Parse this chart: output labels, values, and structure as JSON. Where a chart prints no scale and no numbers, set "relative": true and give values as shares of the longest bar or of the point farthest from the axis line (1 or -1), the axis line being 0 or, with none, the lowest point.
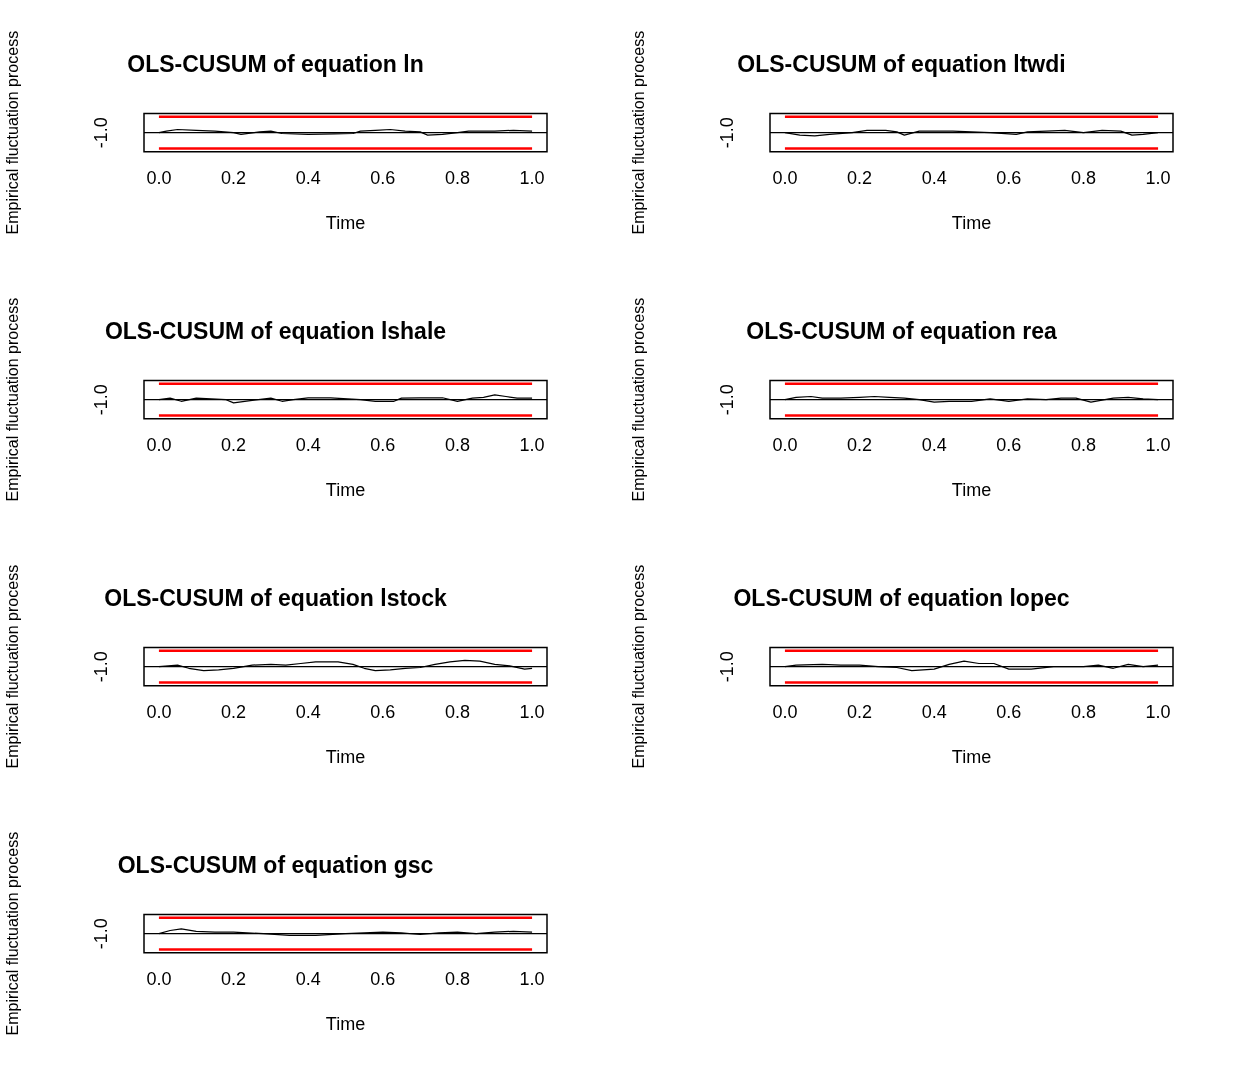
{
  "chart_data": [
    {
      "type": "line",
      "title": "OLS-CUSUM of equation ln",
      "xlabel": "Time",
      "ylabel": "Empirical fluctuation process",
      "relative": true,
      "annotations": [
        "-1.0"
      ],
      "xlim": [
        -0.04,
        1.04
      ],
      "xticks": [
        {
          "value": 0,
          "label": "0.0"
        },
        {
          "value": 0.2,
          "label": "0.2"
        },
        {
          "value": 0.4,
          "label": "0.4"
        },
        {
          "value": 0.6,
          "label": "0.6"
        },
        {
          "value": 0.8,
          "label": "0.8"
        },
        {
          "value": 1,
          "label": "1.0"
        }
      ],
      "ref_lines": [
        {
          "axis": "y",
          "value": 0,
          "color": "#000000"
        }
      ],
      "series": [
        {
          "color": "#ff0000",
          "x": [
            0,
            1
          ],
          "values": [
            1,
            1
          ]
        },
        {
          "color": "#ff0000",
          "x": [
            0,
            1
          ],
          "values": [
            -1,
            -1
          ]
        },
        {
          "color": "#000000",
          "x": [
            0,
            0.02,
            0.05,
            0.1,
            0.15,
            0.2,
            0.22,
            0.27,
            0.3,
            0.33,
            0.4,
            0.47,
            0.52,
            0.54,
            0.58,
            0.62,
            0.66,
            0.7,
            0.72,
            0.76,
            0.8,
            0.83,
            0.9,
            0.95,
            1
          ],
          "values": [
            0,
            0.1,
            0.2,
            0.15,
            0.1,
            0,
            -0.1,
            0.05,
            0.1,
            -0.05,
            -0.1,
            -0.08,
            -0.05,
            0.1,
            0.15,
            0.2,
            0.1,
            0.05,
            -0.15,
            -0.1,
            0,
            0.1,
            0.1,
            0.15,
            0.1
          ]
        }
      ]
    },
    {
      "type": "line",
      "title": "OLS-CUSUM of equation ltwdi",
      "xlabel": "Time",
      "ylabel": "Empirical fluctuation process",
      "relative": true,
      "annotations": [
        "-1.0"
      ],
      "xlim": [
        -0.04,
        1.04
      ],
      "xticks": [
        {
          "value": 0,
          "label": "0.0"
        },
        {
          "value": 0.2,
          "label": "0.2"
        },
        {
          "value": 0.4,
          "label": "0.4"
        },
        {
          "value": 0.6,
          "label": "0.6"
        },
        {
          "value": 0.8,
          "label": "0.8"
        },
        {
          "value": 1,
          "label": "1.0"
        }
      ],
      "ref_lines": [
        {
          "axis": "y",
          "value": 0,
          "color": "#000000"
        }
      ],
      "series": [
        {
          "color": "#ff0000",
          "x": [
            0,
            1
          ],
          "values": [
            1,
            1
          ]
        },
        {
          "color": "#ff0000",
          "x": [
            0,
            1
          ],
          "values": [
            -1,
            -1
          ]
        },
        {
          "color": "#000000",
          "x": [
            0,
            0.04,
            0.08,
            0.12,
            0.18,
            0.22,
            0.27,
            0.3,
            0.32,
            0.36,
            0.4,
            0.45,
            0.5,
            0.55,
            0.62,
            0.65,
            0.7,
            0.75,
            0.8,
            0.85,
            0.9,
            0.93,
            0.96,
            1
          ],
          "values": [
            0,
            -0.15,
            -0.2,
            -0.1,
            0,
            0.15,
            0.15,
            0.05,
            -0.15,
            0.1,
            0.1,
            0.1,
            0.05,
            0,
            -0.1,
            0.05,
            0.1,
            0.15,
            0,
            0.15,
            0.1,
            -0.15,
            -0.1,
            0
          ]
        }
      ]
    },
    {
      "type": "line",
      "title": "OLS-CUSUM of equation lshale",
      "xlabel": "Time",
      "ylabel": "Empirical fluctuation process",
      "relative": true,
      "annotations": [
        "-1.0"
      ],
      "xlim": [
        -0.04,
        1.04
      ],
      "xticks": [
        {
          "value": 0,
          "label": "0.0"
        },
        {
          "value": 0.2,
          "label": "0.2"
        },
        {
          "value": 0.4,
          "label": "0.4"
        },
        {
          "value": 0.6,
          "label": "0.6"
        },
        {
          "value": 0.8,
          "label": "0.8"
        },
        {
          "value": 1,
          "label": "1.0"
        }
      ],
      "ref_lines": [
        {
          "axis": "y",
          "value": 0,
          "color": "#000000"
        }
      ],
      "series": [
        {
          "color": "#ff0000",
          "x": [
            0,
            1
          ],
          "values": [
            1,
            1
          ]
        },
        {
          "color": "#ff0000",
          "x": [
            0,
            1
          ],
          "values": [
            -1,
            -1
          ]
        },
        {
          "color": "#000000",
          "x": [
            0,
            0.03,
            0.06,
            0.1,
            0.18,
            0.2,
            0.23,
            0.3,
            0.33,
            0.36,
            0.4,
            0.46,
            0.54,
            0.58,
            0.63,
            0.65,
            0.7,
            0.76,
            0.8,
            0.84,
            0.87,
            0.9,
            0.93,
            0.96,
            1
          ],
          "values": [
            0,
            0.1,
            -0.1,
            0.1,
            0,
            -0.2,
            -0.1,
            0.1,
            -0.1,
            0,
            0.12,
            0.12,
            0,
            -0.1,
            -0.1,
            0.1,
            0.12,
            0.12,
            -0.1,
            0.1,
            0.15,
            0.3,
            0.2,
            0.1,
            0.1
          ]
        }
      ]
    },
    {
      "type": "line",
      "title": "OLS-CUSUM of equation rea",
      "xlabel": "Time",
      "ylabel": "Empirical fluctuation process",
      "relative": true,
      "annotations": [
        "-1.0"
      ],
      "xlim": [
        -0.04,
        1.04
      ],
      "xticks": [
        {
          "value": 0,
          "label": "0.0"
        },
        {
          "value": 0.2,
          "label": "0.2"
        },
        {
          "value": 0.4,
          "label": "0.4"
        },
        {
          "value": 0.6,
          "label": "0.6"
        },
        {
          "value": 0.8,
          "label": "0.8"
        },
        {
          "value": 1,
          "label": "1.0"
        }
      ],
      "ref_lines": [
        {
          "axis": "y",
          "value": 0,
          "color": "#000000"
        }
      ],
      "series": [
        {
          "color": "#ff0000",
          "x": [
            0,
            1
          ],
          "values": [
            1,
            1
          ]
        },
        {
          "color": "#ff0000",
          "x": [
            0,
            1
          ],
          "values": [
            -1,
            -1
          ]
        },
        {
          "color": "#000000",
          "x": [
            0,
            0.03,
            0.07,
            0.1,
            0.15,
            0.2,
            0.24,
            0.28,
            0.32,
            0.36,
            0.4,
            0.44,
            0.5,
            0.55,
            0.6,
            0.65,
            0.7,
            0.74,
            0.78,
            0.82,
            0.88,
            0.92,
            0.96,
            1
          ],
          "values": [
            0,
            0.15,
            0.2,
            0.1,
            0.1,
            0.15,
            0.2,
            0.15,
            0.1,
            0,
            -0.15,
            -0.1,
            -0.1,
            0.05,
            -0.1,
            0.05,
            0,
            0.1,
            0.1,
            -0.15,
            0.1,
            0.15,
            0.05,
            0
          ]
        }
      ]
    },
    {
      "type": "line",
      "title": "OLS-CUSUM of equation lstock",
      "xlabel": "Time",
      "ylabel": "Empirical fluctuation process",
      "relative": true,
      "annotations": [
        "-1.0"
      ],
      "xlim": [
        -0.04,
        1.04
      ],
      "xticks": [
        {
          "value": 0,
          "label": "0.0"
        },
        {
          "value": 0.2,
          "label": "0.2"
        },
        {
          "value": 0.4,
          "label": "0.4"
        },
        {
          "value": 0.6,
          "label": "0.6"
        },
        {
          "value": 0.8,
          "label": "0.8"
        },
        {
          "value": 1,
          "label": "1.0"
        }
      ],
      "ref_lines": [
        {
          "axis": "y",
          "value": 0,
          "color": "#000000"
        }
      ],
      "series": [
        {
          "color": "#ff0000",
          "x": [
            0,
            1
          ],
          "values": [
            1,
            1
          ]
        },
        {
          "color": "#ff0000",
          "x": [
            0,
            1
          ],
          "values": [
            -1,
            -1
          ]
        },
        {
          "color": "#000000",
          "x": [
            0,
            0.05,
            0.08,
            0.12,
            0.16,
            0.2,
            0.25,
            0.3,
            0.34,
            0.38,
            0.42,
            0.48,
            0.52,
            0.55,
            0.58,
            0.62,
            0.66,
            0.7,
            0.74,
            0.78,
            0.82,
            0.86,
            0.9,
            0.94,
            0.98,
            1
          ],
          "values": [
            0,
            0.1,
            -0.1,
            -0.25,
            -0.2,
            -0.1,
            0.1,
            0.15,
            0.1,
            0.2,
            0.3,
            0.3,
            0.15,
            -0.1,
            -0.25,
            -0.2,
            -0.1,
            -0.05,
            0.15,
            0.3,
            0.4,
            0.35,
            0.15,
            0.05,
            -0.15,
            -0.1
          ]
        }
      ]
    },
    {
      "type": "line",
      "title": "OLS-CUSUM of equation lopec",
      "xlabel": "Time",
      "ylabel": "Empirical fluctuation process",
      "relative": true,
      "annotations": [
        "-1.0"
      ],
      "xlim": [
        -0.04,
        1.04
      ],
      "xticks": [
        {
          "value": 0,
          "label": "0.0"
        },
        {
          "value": 0.2,
          "label": "0.2"
        },
        {
          "value": 0.4,
          "label": "0.4"
        },
        {
          "value": 0.6,
          "label": "0.6"
        },
        {
          "value": 0.8,
          "label": "0.8"
        },
        {
          "value": 1,
          "label": "1.0"
        }
      ],
      "ref_lines": [
        {
          "axis": "y",
          "value": 0,
          "color": "#000000"
        }
      ],
      "series": [
        {
          "color": "#ff0000",
          "x": [
            0,
            1
          ],
          "values": [
            1,
            1
          ]
        },
        {
          "color": "#ff0000",
          "x": [
            0,
            1
          ],
          "values": [
            -1,
            -1
          ]
        },
        {
          "color": "#000000",
          "x": [
            0,
            0.03,
            0.1,
            0.15,
            0.2,
            0.25,
            0.3,
            0.34,
            0.4,
            0.44,
            0.48,
            0.52,
            0.56,
            0.6,
            0.66,
            0.72,
            0.8,
            0.84,
            0.88,
            0.92,
            0.96,
            1
          ],
          "values": [
            0,
            0.1,
            0.15,
            0.1,
            0.1,
            0,
            -0.05,
            -0.25,
            -0.15,
            0.15,
            0.35,
            0.2,
            0.2,
            -0.15,
            -0.15,
            0,
            0,
            0.1,
            -0.1,
            0.15,
            0,
            0.1
          ]
        }
      ]
    },
    {
      "type": "line",
      "title": "OLS-CUSUM of equation gsc",
      "xlabel": "Time",
      "ylabel": "Empirical fluctuation process",
      "relative": true,
      "annotations": [
        "-1.0"
      ],
      "xlim": [
        -0.04,
        1.04
      ],
      "xticks": [
        {
          "value": 0,
          "label": "0.0"
        },
        {
          "value": 0.2,
          "label": "0.2"
        },
        {
          "value": 0.4,
          "label": "0.4"
        },
        {
          "value": 0.6,
          "label": "0.6"
        },
        {
          "value": 0.8,
          "label": "0.8"
        },
        {
          "value": 1,
          "label": "1.0"
        }
      ],
      "ref_lines": [
        {
          "axis": "y",
          "value": 0,
          "color": "#000000"
        }
      ],
      "series": [
        {
          "color": "#ff0000",
          "x": [
            0,
            1
          ],
          "values": [
            1,
            1
          ]
        },
        {
          "color": "#ff0000",
          "x": [
            0,
            1
          ],
          "values": [
            -1,
            -1
          ]
        },
        {
          "color": "#000000",
          "x": [
            0,
            0.03,
            0.06,
            0.1,
            0.15,
            0.2,
            0.28,
            0.35,
            0.42,
            0.5,
            0.55,
            0.6,
            0.65,
            0.7,
            0.75,
            0.8,
            0.85,
            0.9,
            0.95,
            1
          ],
          "values": [
            0,
            0.2,
            0.3,
            0.15,
            0.1,
            0.1,
            0,
            -0.1,
            -0.1,
            0,
            0.05,
            0.1,
            0.05,
            -0.05,
            0.05,
            0.1,
            0,
            0.1,
            0.15,
            0.1
          ]
        }
      ]
    }
  ]
}
